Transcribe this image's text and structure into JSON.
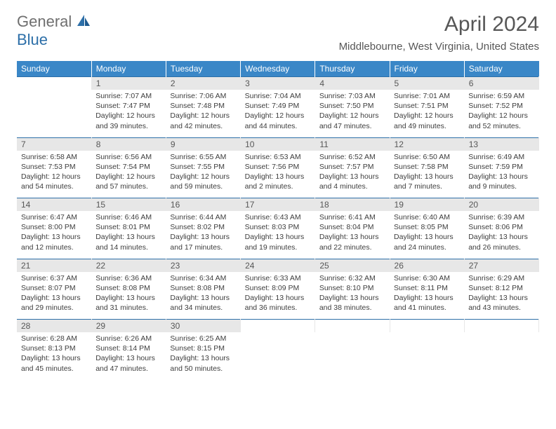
{
  "logo": {
    "text1": "General",
    "text2": "Blue"
  },
  "title": "April 2024",
  "location": "Middlebourne, West Virginia, United States",
  "colors": {
    "header_bg": "#3a87c7",
    "header_text": "#ffffff",
    "daynum_bg": "#e7e7e7",
    "border": "#2d6fa8",
    "title_color": "#575757",
    "logo_gray": "#6f6f6f",
    "logo_blue": "#2d6fa8"
  },
  "days_of_week": [
    "Sunday",
    "Monday",
    "Tuesday",
    "Wednesday",
    "Thursday",
    "Friday",
    "Saturday"
  ],
  "start_offset": 1,
  "days": [
    {
      "n": 1,
      "sunrise": "7:07 AM",
      "sunset": "7:47 PM",
      "daylight": "12 hours and 39 minutes."
    },
    {
      "n": 2,
      "sunrise": "7:06 AM",
      "sunset": "7:48 PM",
      "daylight": "12 hours and 42 minutes."
    },
    {
      "n": 3,
      "sunrise": "7:04 AM",
      "sunset": "7:49 PM",
      "daylight": "12 hours and 44 minutes."
    },
    {
      "n": 4,
      "sunrise": "7:03 AM",
      "sunset": "7:50 PM",
      "daylight": "12 hours and 47 minutes."
    },
    {
      "n": 5,
      "sunrise": "7:01 AM",
      "sunset": "7:51 PM",
      "daylight": "12 hours and 49 minutes."
    },
    {
      "n": 6,
      "sunrise": "6:59 AM",
      "sunset": "7:52 PM",
      "daylight": "12 hours and 52 minutes."
    },
    {
      "n": 7,
      "sunrise": "6:58 AM",
      "sunset": "7:53 PM",
      "daylight": "12 hours and 54 minutes."
    },
    {
      "n": 8,
      "sunrise": "6:56 AM",
      "sunset": "7:54 PM",
      "daylight": "12 hours and 57 minutes."
    },
    {
      "n": 9,
      "sunrise": "6:55 AM",
      "sunset": "7:55 PM",
      "daylight": "12 hours and 59 minutes."
    },
    {
      "n": 10,
      "sunrise": "6:53 AM",
      "sunset": "7:56 PM",
      "daylight": "13 hours and 2 minutes."
    },
    {
      "n": 11,
      "sunrise": "6:52 AM",
      "sunset": "7:57 PM",
      "daylight": "13 hours and 4 minutes."
    },
    {
      "n": 12,
      "sunrise": "6:50 AM",
      "sunset": "7:58 PM",
      "daylight": "13 hours and 7 minutes."
    },
    {
      "n": 13,
      "sunrise": "6:49 AM",
      "sunset": "7:59 PM",
      "daylight": "13 hours and 9 minutes."
    },
    {
      "n": 14,
      "sunrise": "6:47 AM",
      "sunset": "8:00 PM",
      "daylight": "13 hours and 12 minutes."
    },
    {
      "n": 15,
      "sunrise": "6:46 AM",
      "sunset": "8:01 PM",
      "daylight": "13 hours and 14 minutes."
    },
    {
      "n": 16,
      "sunrise": "6:44 AM",
      "sunset": "8:02 PM",
      "daylight": "13 hours and 17 minutes."
    },
    {
      "n": 17,
      "sunrise": "6:43 AM",
      "sunset": "8:03 PM",
      "daylight": "13 hours and 19 minutes."
    },
    {
      "n": 18,
      "sunrise": "6:41 AM",
      "sunset": "8:04 PM",
      "daylight": "13 hours and 22 minutes."
    },
    {
      "n": 19,
      "sunrise": "6:40 AM",
      "sunset": "8:05 PM",
      "daylight": "13 hours and 24 minutes."
    },
    {
      "n": 20,
      "sunrise": "6:39 AM",
      "sunset": "8:06 PM",
      "daylight": "13 hours and 26 minutes."
    },
    {
      "n": 21,
      "sunrise": "6:37 AM",
      "sunset": "8:07 PM",
      "daylight": "13 hours and 29 minutes."
    },
    {
      "n": 22,
      "sunrise": "6:36 AM",
      "sunset": "8:08 PM",
      "daylight": "13 hours and 31 minutes."
    },
    {
      "n": 23,
      "sunrise": "6:34 AM",
      "sunset": "8:08 PM",
      "daylight": "13 hours and 34 minutes."
    },
    {
      "n": 24,
      "sunrise": "6:33 AM",
      "sunset": "8:09 PM",
      "daylight": "13 hours and 36 minutes."
    },
    {
      "n": 25,
      "sunrise": "6:32 AM",
      "sunset": "8:10 PM",
      "daylight": "13 hours and 38 minutes."
    },
    {
      "n": 26,
      "sunrise": "6:30 AM",
      "sunset": "8:11 PM",
      "daylight": "13 hours and 41 minutes."
    },
    {
      "n": 27,
      "sunrise": "6:29 AM",
      "sunset": "8:12 PM",
      "daylight": "13 hours and 43 minutes."
    },
    {
      "n": 28,
      "sunrise": "6:28 AM",
      "sunset": "8:13 PM",
      "daylight": "13 hours and 45 minutes."
    },
    {
      "n": 29,
      "sunrise": "6:26 AM",
      "sunset": "8:14 PM",
      "daylight": "13 hours and 47 minutes."
    },
    {
      "n": 30,
      "sunrise": "6:25 AM",
      "sunset": "8:15 PM",
      "daylight": "13 hours and 50 minutes."
    }
  ],
  "labels": {
    "sunrise": "Sunrise:",
    "sunset": "Sunset:",
    "daylight": "Daylight:"
  }
}
